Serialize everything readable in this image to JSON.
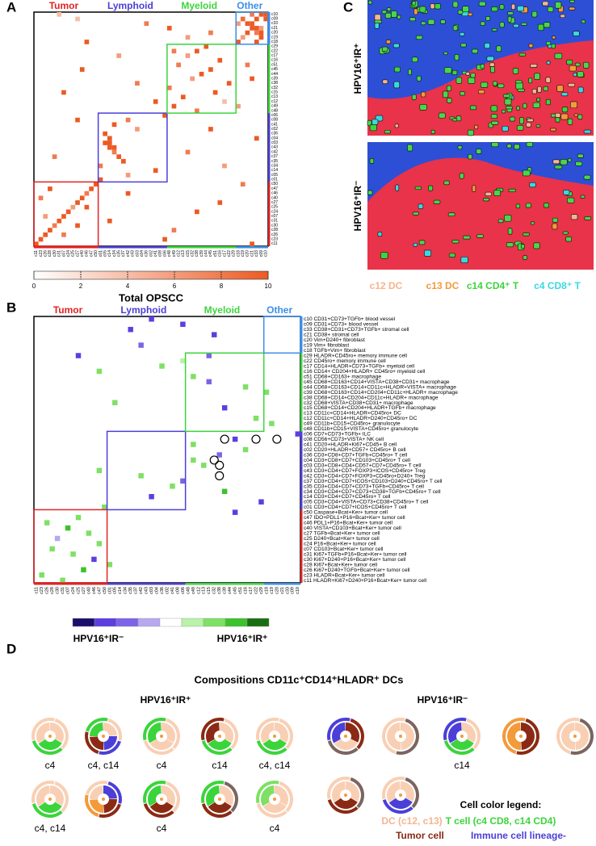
{
  "panels": {
    "a": "A",
    "b": "B",
    "c": "C",
    "d": "D"
  },
  "groups": [
    {
      "name": "Tumor",
      "color": "#e02424"
    },
    {
      "name": "Lymphoid",
      "color": "#4b3fd8"
    },
    {
      "name": "Myeloid",
      "color": "#3cd43c"
    },
    {
      "name": "Other",
      "color": "#3c8ee8"
    }
  ],
  "clusters": [
    {
      "code": "c10",
      "label": "CD31+CD73+TGFb+ blood vessel",
      "group": "Other"
    },
    {
      "code": "c09",
      "label": "CD31+CD73+ blood vessel",
      "group": "Other"
    },
    {
      "code": "c33",
      "label": "CD38+CD31+CD73+TGFb+ stromal cell",
      "group": "Other"
    },
    {
      "code": "c21",
      "label": "CD38+ stromal cell",
      "group": "Other"
    },
    {
      "code": "c20",
      "label": "Vim+D240+ fibroblast",
      "group": "Other"
    },
    {
      "code": "c19",
      "label": "Vim+ fibroblast",
      "group": "Other"
    },
    {
      "code": "c18",
      "label": "TGFb+Vim+ fibroblast",
      "group": "Other"
    },
    {
      "code": "c29",
      "label": "HLADR+CD45ro+ memory immune cell",
      "group": "Myeloid"
    },
    {
      "code": "c22",
      "label": "CD45ro+ memory immune cell",
      "group": "Myeloid"
    },
    {
      "code": "c17",
      "label": "CD14+HLADR+CD73+TGFb+ myeloid cell",
      "group": "Myeloid"
    },
    {
      "code": "c16",
      "label": "CD14+ CD204+HLADR+ CD45ro+ myeloid cell",
      "group": "Myeloid"
    },
    {
      "code": "c51",
      "label": "CD68+CD163+ macrophage",
      "group": "Myeloid"
    },
    {
      "code": "c45",
      "label": "CD68+CD163+CD14+VISTA+CD38+CD31+ macrophage",
      "group": "Myeloid"
    },
    {
      "code": "c44",
      "label": "CD68+CD163+CD14+CD11c+HLADR+VISTA+ macrophage",
      "group": "Myeloid"
    },
    {
      "code": "c39",
      "label": "CD68+CD163+CD14+CD204+CD11c+HLADR+ macrophage",
      "group": "Myeloid"
    },
    {
      "code": "c38",
      "label": "CD68+CD14+CD204+CD11c+HLADR+ macrophage",
      "group": "Myeloid"
    },
    {
      "code": "c32",
      "label": "CD68+VISTA+CD38+CD31+ macrophage",
      "group": "Myeloid"
    },
    {
      "code": "c15",
      "label": "CD68+CD14+CD204+HLADR+TGFb+ macrophage",
      "group": "Myeloid"
    },
    {
      "code": "c13",
      "label": "CD11c+CD14+HLADR+CD45ro+ DC",
      "group": "Myeloid"
    },
    {
      "code": "c12",
      "label": "CD11c+CD14+HLADR+D240+CD45ro+ DC",
      "group": "Myeloid"
    },
    {
      "code": "c49",
      "label": "CD11b+CD15+CD45ro+ granulocyte",
      "group": "Myeloid"
    },
    {
      "code": "c48",
      "label": "CD11b+CD15+VISTA+CD45ro+ granulocyte",
      "group": "Myeloid"
    },
    {
      "code": "c06",
      "label": "CD7+CD73+TGFb+ ILC",
      "group": "Lymphoid"
    },
    {
      "code": "c08",
      "label": "CD56+CD73+VISTA+ NK cell",
      "group": "Lymphoid"
    },
    {
      "code": "c41",
      "label": "CD20+HLADR+Ki67+CD45+ B cell",
      "group": "Lymphoid"
    },
    {
      "code": "c02",
      "label": "CD20+HLADR+CD57+ CD45ro+ B cell",
      "group": "Lymphoid"
    },
    {
      "code": "c36",
      "label": "CD3+CD8+CD7+TGFb+CD45ro+ T cell",
      "group": "Lymphoid"
    },
    {
      "code": "c04",
      "label": "CD3+CD8+CD7+CD103+CD45ro+ T cell",
      "group": "Lymphoid"
    },
    {
      "code": "c03",
      "label": "CD3+CD8+CD4+CD57+CD7+CD45ro+ T cell",
      "group": "Lymphoid"
    },
    {
      "code": "c43",
      "label": "CD3+CD4+CD7+FOXP3+ICOS+CD45ro+ Treg",
      "group": "Lymphoid"
    },
    {
      "code": "c42",
      "label": "CD3+CD4+CD7+FOXP3+CD45ro+D240+ Treg",
      "group": "Lymphoid"
    },
    {
      "code": "c37",
      "label": "CD3+CD4+CD7+ICOS+CD103+D240+CD45ro+ T cell",
      "group": "Lymphoid"
    },
    {
      "code": "c35",
      "label": "CD3+CD4+CD7+CD73+TGFb+CD45ro+ T cell",
      "group": "Lymphoid"
    },
    {
      "code": "c34",
      "label": "CD3+CD4+CD7+CD73+CD38+TGFb+CD45ro+ T cell",
      "group": "Lymphoid"
    },
    {
      "code": "c14",
      "label": "CD3+CD4+CD7+CD45ro+ T cell",
      "group": "Lymphoid"
    },
    {
      "code": "c05",
      "label": "CD3+CD4+VISTA+CD73+CD38+CD45ro+ T cell",
      "group": "Lymphoid"
    },
    {
      "code": "c01",
      "label": "CD3+CD4+CD7+ICOS+CD45ro+ T cell",
      "group": "Lymphoid"
    },
    {
      "code": "c50",
      "label": "Caspase+Bcat+Ker+ tumor cell",
      "group": "Tumor"
    },
    {
      "code": "c47",
      "label": "IDO+PDL1+P16+Bcat+Ker+ tumor cell",
      "group": "Tumor"
    },
    {
      "code": "c46",
      "label": "PDL1+P16+Bcat+Ker+ tumor cell",
      "group": "Tumor"
    },
    {
      "code": "c40",
      "label": "VISTA+CD103+Bcat+Ker+ tumor cell",
      "group": "Tumor"
    },
    {
      "code": "c27",
      "label": "TGFb+Bcat+Ker+ tumor cell",
      "group": "Tumor"
    },
    {
      "code": "c25",
      "label": "D240+Bcat+Ker+ tumor cell",
      "group": "Tumor"
    },
    {
      "code": "c24",
      "label": "P16+Bcat+Ker+ tumor cell",
      "group": "Tumor"
    },
    {
      "code": "c07",
      "label": "CD103+Bcat+Ker+ tumor cell",
      "group": "Tumor"
    },
    {
      "code": "c31",
      "label": "Ki67+TGFb+P16+Bcat+Ker+ tumor cell",
      "group": "Tumor"
    },
    {
      "code": "c30",
      "label": "Ki67+D240+P16+Bcat+Ker+ tumor cell",
      "group": "Tumor"
    },
    {
      "code": "c28",
      "label": "Ki67+Bcat+Ker+ tumor cell",
      "group": "Tumor"
    },
    {
      "code": "c26",
      "label": "Ki67+D240+TGFb+Bcat+Ker+ tumor cell",
      "group": "Tumor"
    },
    {
      "code": "c23",
      "label": "HLADR+Bcat+Ker+ tumor cell",
      "group": "Tumor"
    },
    {
      "code": "c11",
      "label": "HLADR+Ki67+D240+P16+Bcat+Ker+ tumor cell",
      "group": "Tumor"
    }
  ],
  "heatmap_a": {
    "cells": [
      [
        0,
        47,
        8
      ],
      [
        0,
        49,
        10
      ],
      [
        0,
        50,
        10
      ],
      [
        1,
        45,
        9
      ],
      [
        1,
        48,
        10
      ],
      [
        1,
        50,
        10
      ],
      [
        2,
        44,
        6
      ],
      [
        2,
        46,
        10
      ],
      [
        2,
        47,
        10
      ],
      [
        3,
        47,
        10
      ],
      [
        3,
        48,
        10
      ],
      [
        3,
        49,
        6
      ],
      [
        4,
        46,
        10
      ],
      [
        4,
        48,
        8
      ],
      [
        4,
        49,
        10
      ],
      [
        5,
        45,
        6
      ],
      [
        5,
        49,
        10
      ],
      [
        6,
        44,
        10
      ],
      [
        6,
        48,
        10
      ],
      [
        0,
        5,
        4
      ],
      [
        1,
        9,
        4
      ],
      [
        2,
        24,
        8
      ],
      [
        3,
        29,
        10
      ],
      [
        4,
        38,
        8
      ],
      [
        5,
        33,
        6
      ],
      [
        6,
        11,
        10
      ],
      [
        7,
        37,
        10
      ],
      [
        8,
        30,
        8
      ],
      [
        8,
        35,
        10
      ],
      [
        9,
        33,
        6
      ],
      [
        10,
        40,
        10
      ],
      [
        11,
        31,
        8
      ],
      [
        12,
        38,
        10
      ],
      [
        13,
        36,
        10
      ],
      [
        14,
        34,
        6
      ],
      [
        15,
        42,
        10
      ],
      [
        16,
        29,
        8
      ],
      [
        17,
        39,
        10
      ],
      [
        18,
        32,
        10
      ],
      [
        19,
        41,
        4
      ],
      [
        20,
        30,
        10
      ],
      [
        21,
        35,
        8
      ],
      [
        9,
        18,
        6
      ],
      [
        12,
        10,
        10
      ],
      [
        15,
        22,
        8
      ],
      [
        17,
        6,
        10
      ],
      [
        19,
        26,
        10
      ],
      [
        11,
        46,
        8
      ],
      [
        14,
        47,
        10
      ],
      [
        20,
        44,
        6
      ],
      [
        22,
        28,
        10
      ],
      [
        23,
        20,
        8
      ],
      [
        24,
        17,
        10
      ],
      [
        25,
        22,
        6
      ],
      [
        26,
        15,
        10
      ],
      [
        27,
        16,
        10
      ],
      [
        28,
        15,
        10
      ],
      [
        28,
        16,
        10
      ],
      [
        29,
        16,
        10
      ],
      [
        29,
        17,
        10
      ],
      [
        30,
        17,
        8
      ],
      [
        31,
        18,
        10
      ],
      [
        32,
        19,
        10
      ],
      [
        33,
        14,
        8
      ],
      [
        34,
        26,
        10
      ],
      [
        35,
        20,
        6
      ],
      [
        36,
        14,
        10
      ],
      [
        25,
        38,
        10
      ],
      [
        30,
        33,
        8
      ],
      [
        33,
        41,
        6
      ],
      [
        27,
        48,
        10
      ],
      [
        23,
        9,
        10
      ],
      [
        31,
        4,
        8
      ],
      [
        37,
        13,
        10
      ],
      [
        38,
        12,
        10
      ],
      [
        39,
        11,
        8
      ],
      [
        40,
        10,
        10
      ],
      [
        41,
        9,
        10
      ],
      [
        42,
        8,
        6
      ],
      [
        43,
        7,
        10
      ],
      [
        44,
        6,
        10
      ],
      [
        45,
        5,
        10
      ],
      [
        46,
        4,
        8
      ],
      [
        47,
        3,
        10
      ],
      [
        48,
        2,
        10
      ],
      [
        49,
        1,
        10
      ],
      [
        50,
        0,
        10
      ],
      [
        38,
        3,
        10
      ],
      [
        40,
        1,
        8
      ],
      [
        42,
        11,
        10
      ],
      [
        44,
        2,
        6
      ],
      [
        46,
        9,
        10
      ],
      [
        48,
        6,
        8
      ],
      [
        39,
        20,
        10
      ],
      [
        45,
        16,
        10
      ],
      [
        47,
        30,
        8
      ],
      [
        41,
        40,
        10
      ],
      [
        49,
        28,
        10
      ],
      [
        43,
        35,
        10
      ],
      [
        50,
        47,
        10
      ],
      [
        37,
        45,
        8
      ]
    ],
    "lim": [
      0,
      10
    ],
    "ticks": [
      0,
      2,
      4,
      6,
      8,
      10
    ],
    "colors": [
      "#ffffff",
      "#ec5a24"
    ],
    "colorbar_label": "Total OPSCC"
  },
  "heatmap_b": {
    "cells": [
      [
        0,
        22,
        -3
      ],
      [
        1,
        28,
        -3
      ],
      [
        2,
        18,
        -3
      ],
      [
        3,
        34,
        -3
      ],
      [
        5,
        20,
        -2
      ],
      [
        7,
        8,
        -3
      ],
      [
        7,
        33,
        -2
      ],
      [
        8,
        28,
        1
      ],
      [
        9,
        24,
        2
      ],
      [
        10,
        12,
        2
      ],
      [
        11,
        30,
        2
      ],
      [
        12,
        33,
        -2
      ],
      [
        13,
        40,
        2
      ],
      [
        14,
        44,
        2
      ],
      [
        16,
        15,
        2
      ],
      [
        17,
        36,
        -3
      ],
      [
        19,
        42,
        2
      ],
      [
        20,
        45,
        2
      ],
      [
        22,
        50,
        -3
      ],
      [
        23,
        38,
        -3
      ],
      [
        24,
        30,
        2
      ],
      [
        25,
        40,
        2
      ],
      [
        26,
        35,
        -2
      ],
      [
        27,
        30,
        2
      ],
      [
        28,
        32,
        2
      ],
      [
        29,
        12,
        2
      ],
      [
        30,
        20,
        2
      ],
      [
        31,
        28,
        -2
      ],
      [
        32,
        26,
        2
      ],
      [
        33,
        36,
        3
      ],
      [
        34,
        22,
        -3
      ],
      [
        35,
        43,
        -3
      ],
      [
        36,
        13,
        2
      ],
      [
        37,
        38,
        -3
      ],
      [
        38,
        8,
        2
      ],
      [
        39,
        2,
        2
      ],
      [
        40,
        6,
        3
      ],
      [
        41,
        10,
        2
      ],
      [
        42,
        4,
        -1
      ],
      [
        43,
        12,
        2
      ],
      [
        44,
        3,
        2
      ],
      [
        45,
        7,
        2
      ],
      [
        46,
        11,
        -3
      ],
      [
        47,
        14,
        2
      ],
      [
        48,
        9,
        3
      ],
      [
        49,
        1,
        2
      ],
      [
        50,
        5,
        2
      ]
    ],
    "circled": [
      [
        23,
        36
      ],
      [
        23,
        42
      ],
      [
        23,
        46
      ],
      [
        27,
        34
      ],
      [
        28,
        35
      ],
      [
        30,
        35
      ]
    ],
    "scale_colors": [
      "#1a0f6b",
      "#5b3fe0",
      "#7e63e8",
      "#b7a8f0",
      "#ffffff",
      "#b9f2a8",
      "#7ee064",
      "#3cc22b",
      "#1a6e12"
    ],
    "legend_low": "HPV16⁺IR⁻",
    "legend_high": "HPV16⁺IR⁺"
  },
  "images": {
    "top_label": "HPV16⁺IR⁺",
    "bottom_label": "HPV16⁺IR⁻",
    "legend": [
      {
        "text": "c12 DC",
        "color": "#f6b48f"
      },
      {
        "text": "c13 DC",
        "color": "#f39a3a"
      },
      {
        "text": "c14 CD4⁺ T",
        "color": "#3cd43c"
      },
      {
        "text": "c4 CD8⁺ T",
        "color": "#3ad8e0"
      }
    ]
  },
  "compositions": {
    "title": "Compositions CD11c⁺CD14⁺HLADR⁺ DCs",
    "left_title": "HPV16⁺IR⁺",
    "right_title": "HPV16⁺IR⁻",
    "left": [
      {
        "caption": "c4",
        "colors": [
          "#f9cfb4",
          "#3cd43c",
          "#f9cfb4"
        ]
      },
      {
        "caption": "c4, c14",
        "colors": [
          "#f9cfb4",
          "#4b3fd8",
          "#8b2a14",
          "#3cd43c"
        ]
      },
      {
        "caption": "c4",
        "colors": [
          "#f9cfb4",
          "#f9cfb4",
          "#3cd43c"
        ]
      },
      {
        "caption": "c14",
        "colors": [
          "#f9cfb4",
          "#3cd43c",
          "#8b2a14"
        ]
      },
      {
        "caption": "c4, c14",
        "colors": [
          "#f9cfb4",
          "#3cd43c",
          "#f9cfb4"
        ]
      },
      {
        "caption": "c4, c14",
        "colors": [
          "#f9cfb4",
          "#3cd43c",
          "#f9cfb4"
        ]
      },
      {
        "colors": [
          "#4b3fd8",
          "#8b2a14",
          "#f39a3a",
          "#f9cfb4"
        ]
      },
      {
        "caption": "c4",
        "colors": [
          "#f9cfb4",
          "#8b2a14",
          "#3cd43c"
        ]
      },
      {
        "colors": [
          "#7a6560",
          "#8b2a14",
          "#3cd43c"
        ]
      },
      {
        "caption": "c4",
        "colors": [
          "#f9cfb4",
          "#f9cfb4",
          "#7ee064"
        ]
      }
    ],
    "right": [
      {
        "colors": [
          "#8b2a14",
          "#7a6560",
          "#4b3fd8"
        ]
      },
      {
        "colors": [
          "#7a6560",
          "#f9cfb4"
        ]
      },
      {
        "caption": "c14",
        "colors": [
          "#f9cfb4",
          "#3cd43c",
          "#4b3fd8"
        ]
      },
      {
        "colors": [
          "#8b2a14",
          "#f39a3a"
        ]
      },
      {
        "colors": [
          "#7a6560",
          "#f9cfb4"
        ]
      },
      {
        "colors": [
          "#7a6560",
          "#8b2a14",
          "#f9cfb4"
        ]
      },
      {
        "colors": [
          "#7a6560",
          "#4b3fd8",
          "#f9cfb4"
        ]
      }
    ],
    "legend_title": "Cell color legend:",
    "legend": [
      {
        "text": "DC (c12, c13)",
        "color": "#f6b48f"
      },
      {
        "text": "T cell (c4 CD8, c14 CD4)",
        "color": "#3cd43c"
      },
      {
        "text": "Tumor cell",
        "color": "#8b2a14"
      },
      {
        "text": "Immune cell lineage-",
        "color": "#4b3fd8"
      }
    ]
  }
}
